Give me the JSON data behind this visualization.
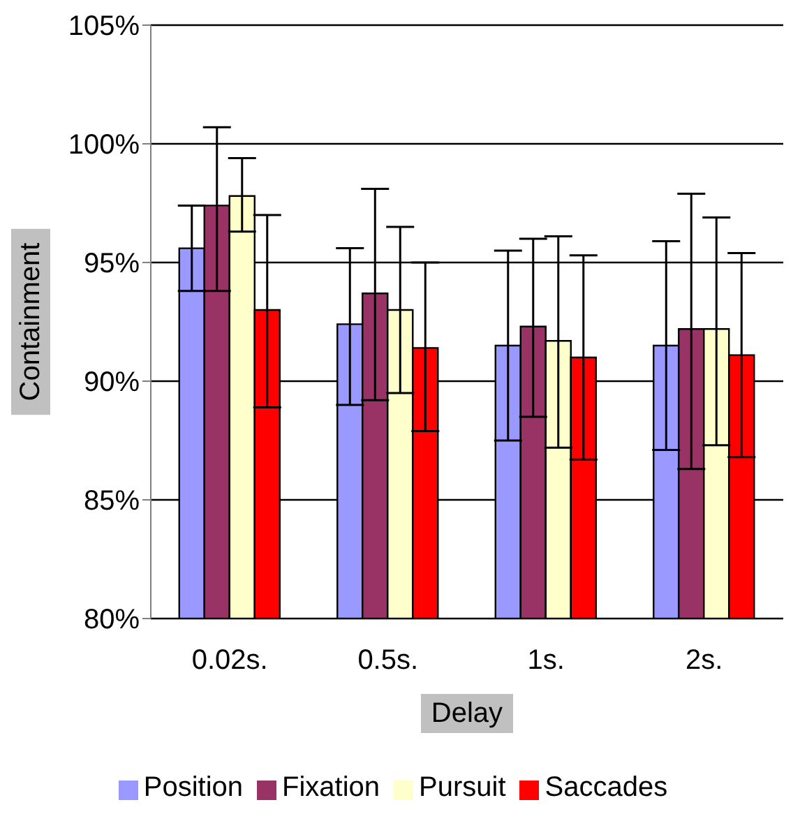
{
  "chart_data": {
    "type": "bar",
    "xlabel": "Delay",
    "ylabel": "Containment",
    "categories": [
      "0.02s.",
      "0.5s.",
      "1s.",
      "2s."
    ],
    "series": [
      {
        "name": "Position",
        "color": "#9999ff",
        "values": [
          95.6,
          92.4,
          91.5,
          91.5
        ],
        "errors": [
          [
            93.8,
            97.4
          ],
          [
            89.0,
            95.6
          ],
          [
            87.5,
            95.5
          ],
          [
            87.1,
            95.9
          ]
        ]
      },
      {
        "name": "Fixation",
        "color": "#993366",
        "values": [
          97.4,
          93.7,
          92.3,
          92.2
        ],
        "errors": [
          [
            93.8,
            100.7
          ],
          [
            89.2,
            98.1
          ],
          [
            88.5,
            96.0
          ],
          [
            86.3,
            97.9
          ]
        ]
      },
      {
        "name": "Pursuit",
        "color": "#ffffcc",
        "values": [
          97.8,
          93.0,
          91.7,
          92.2
        ],
        "errors": [
          [
            96.3,
            99.4
          ],
          [
            89.5,
            96.5
          ],
          [
            87.2,
            96.1
          ],
          [
            87.3,
            96.9
          ]
        ]
      },
      {
        "name": "Saccades",
        "color": "#ff0000",
        "values": [
          93.0,
          91.4,
          91.0,
          91.1
        ],
        "errors": [
          [
            88.9,
            97.0
          ],
          [
            87.9,
            95.0
          ],
          [
            86.7,
            95.3
          ],
          [
            86.8,
            95.4
          ]
        ]
      }
    ],
    "ylim": [
      80,
      105
    ],
    "yticks": [
      {
        "value": 80,
        "label": "80%"
      },
      {
        "value": 85,
        "label": "85%"
      },
      {
        "value": 90,
        "label": "90%"
      },
      {
        "value": 95,
        "label": "95%"
      },
      {
        "value": 100,
        "label": "100%"
      },
      {
        "value": 105,
        "label": "105%"
      }
    ],
    "grid": "y",
    "legend": "bottom"
  }
}
